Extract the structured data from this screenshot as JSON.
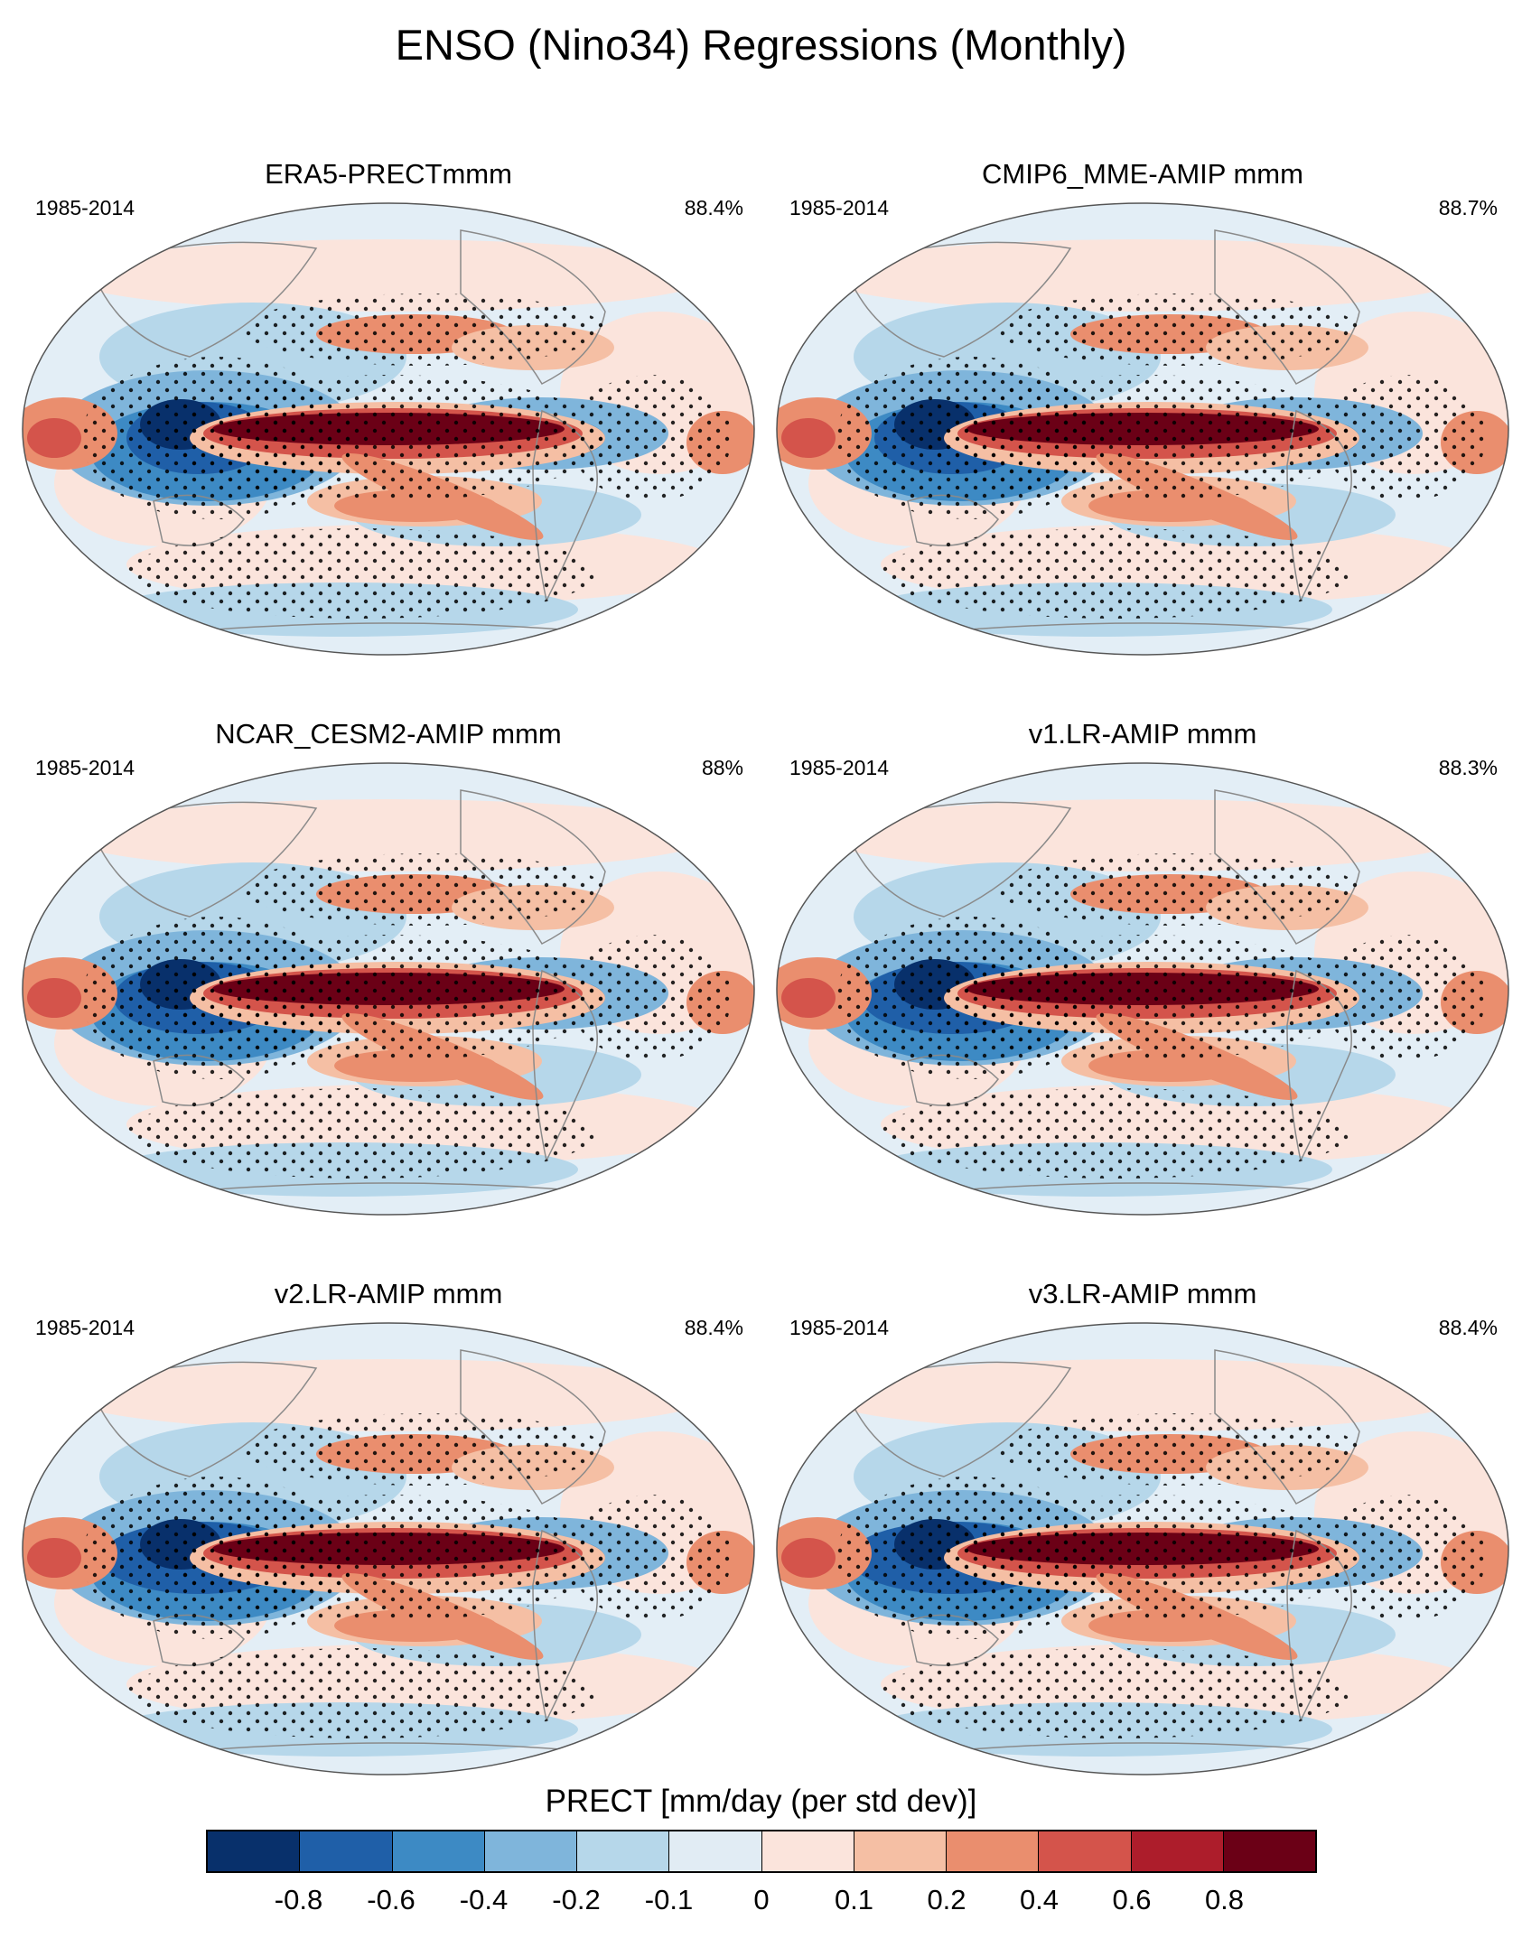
{
  "title": "ENSO (Nino34) Regressions (Monthly)",
  "panels": [
    {
      "title": "ERA5-PRECTmmm",
      "period": "1985-2014",
      "pct": "88.4%"
    },
    {
      "title": "CMIP6_MME-AMIP  mmm",
      "period": "1985-2014",
      "pct": "88.7%"
    },
    {
      "title": "NCAR_CESM2-AMIP  mmm",
      "period": "1985-2014",
      "pct": "88%"
    },
    {
      "title": "v1.LR-AMIP  mmm",
      "period": "1985-2014",
      "pct": "88.3%"
    },
    {
      "title": "v2.LR-AMIP  mmm",
      "period": "1985-2014",
      "pct": "88.4%"
    },
    {
      "title": "v3.LR-AMIP  mmm",
      "period": "1985-2014",
      "pct": "88.4%"
    }
  ],
  "colorbar": {
    "title": "PRECT [mm/day (per std dev)]",
    "labels": [
      "-0.8",
      "-0.6",
      "-0.4",
      "-0.2",
      "-0.1",
      "0",
      "0.1",
      "0.2",
      "0.4",
      "0.6",
      "0.8"
    ],
    "colors": [
      "#08306b",
      "#1f5fa8",
      "#3d8ac4",
      "#7fb5db",
      "#b6d7ea",
      "#e1ecf4",
      "#fbe4dc",
      "#f5bfa4",
      "#ea8e6e",
      "#d4544b",
      "#ad1d2b",
      "#6b0016"
    ]
  },
  "colors": {
    "ocean_base": "#e3eef6",
    "coast": "#8a8a8a"
  }
}
